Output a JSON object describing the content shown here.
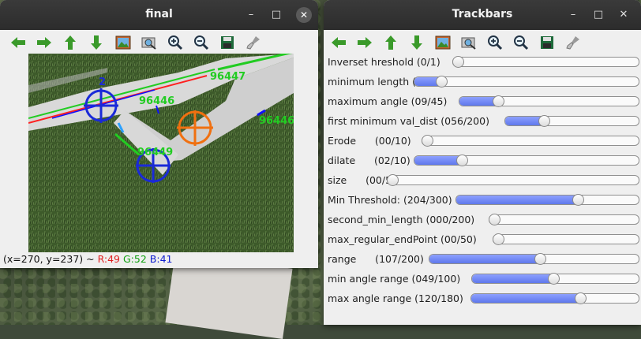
{
  "windows": {
    "final": {
      "title": "final",
      "controls": {
        "minimize": "–",
        "maximize": "□",
        "close": "✕"
      },
      "status": {
        "coords": "(x=270, y=237) ~ ",
        "r": "R:49",
        "g": "G:52",
        "b": "B:41",
        "r_color": "#e02020",
        "g_color": "#10a010",
        "b_color": "#1020d0"
      },
      "overlay_labels": [
        "2",
        "96447",
        "96446",
        "96446",
        "96449"
      ]
    },
    "trackbars": {
      "title": "Trackbars",
      "controls": {
        "minimize": "–",
        "maximize": "□",
        "close": "✕"
      },
      "items": [
        {
          "label": "Inverset hreshold (0/1)",
          "value": 0,
          "max": 1
        },
        {
          "label": "minimum length (021/200)",
          "value": 21,
          "max": 200
        },
        {
          "label": "maximum angle (09/45)",
          "value": 9,
          "max": 45
        },
        {
          "label": "first minimum val_dist (056/200)",
          "value": 56,
          "max": 200
        },
        {
          "label": "Erode      (00/10)",
          "value": 0,
          "max": 10
        },
        {
          "label": "dilate      (02/10)",
          "value": 2,
          "max": 10
        },
        {
          "label": "size      (00/50)",
          "value": 0,
          "max": 50
        },
        {
          "label": "Min Threshold: (204/300)",
          "value": 204,
          "max": 300
        },
        {
          "label": "second_min_length (000/200)",
          "value": 0,
          "max": 200
        },
        {
          "label": "max_regular_endPoint (00/50)",
          "value": 0,
          "max": 50
        },
        {
          "label": "range      (107/200)",
          "value": 107,
          "max": 200
        },
        {
          "label": "min angle range (049/100)",
          "value": 49,
          "max": 100
        },
        {
          "label": "max angle range (120/180)",
          "value": 120,
          "max": 180
        }
      ]
    }
  },
  "toolbar_icons": [
    "arrow-left-icon",
    "arrow-right-icon",
    "arrow-up-icon",
    "arrow-down-icon",
    "image-icon",
    "zoom-fit-icon",
    "zoom-in-icon",
    "zoom-out-icon",
    "save-icon",
    "settings-brush-icon"
  ],
  "colors": {
    "accent_green": "#3aa63a",
    "slider_fill": "#6f86f2",
    "titlebar": "#2f2f2f"
  }
}
